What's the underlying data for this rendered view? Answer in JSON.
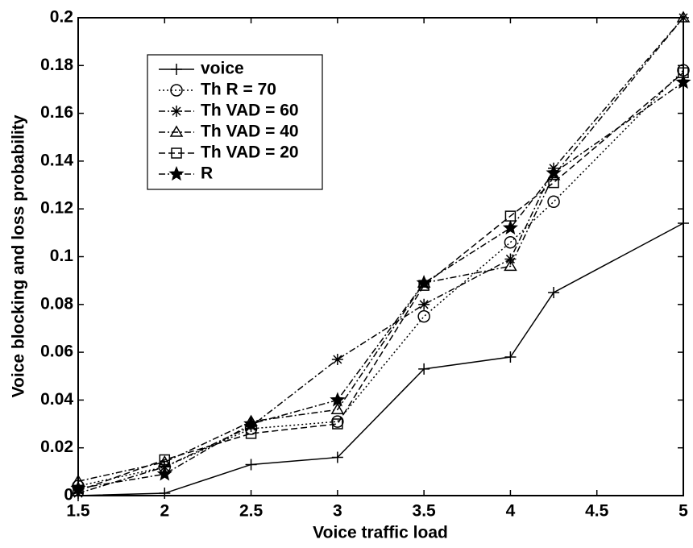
{
  "chart_data": {
    "type": "line",
    "xlabel": "Voice traffic load",
    "ylabel": "Voice blocking and loss probability",
    "xlim": [
      1.5,
      5
    ],
    "ylim": [
      0,
      0.2
    ],
    "xticks": [
      1.5,
      2,
      2.5,
      3,
      3.5,
      4,
      4.5,
      5
    ],
    "yticks": [
      0,
      0.02,
      0.04,
      0.06,
      0.08,
      0.1,
      0.12,
      0.14,
      0.16,
      0.18,
      0.2
    ],
    "legend": "upper left",
    "x": [
      1.5,
      2,
      2.5,
      3,
      3.5,
      4,
      4.25,
      5
    ],
    "series": [
      {
        "name": "voice",
        "color": "#000000",
        "marker": "plus",
        "dash": "solid",
        "values": [
          0,
          0.001,
          0.013,
          0.016,
          0.053,
          0.058,
          0.085,
          0.114
        ]
      },
      {
        "name": "Th R = 70",
        "color": "#000000",
        "marker": "circle",
        "dash": "dotted",
        "values": [
          0.004,
          0.012,
          0.028,
          0.031,
          0.075,
          0.106,
          0.123,
          0.178
        ]
      },
      {
        "name": "Th VAD = 60",
        "color": "#000000",
        "marker": "asterisk",
        "dash": "dashdot",
        "values": [
          0.001,
          0.012,
          0.029,
          0.057,
          0.08,
          0.099,
          0.137,
          0.2
        ]
      },
      {
        "name": "Th VAD = 40",
        "color": "#000000",
        "marker": "triangle",
        "dash": "dashdot",
        "values": [
          0.006,
          0.014,
          0.031,
          0.036,
          0.089,
          0.096,
          0.134,
          0.2
        ]
      },
      {
        "name": "Th VAD = 20",
        "color": "#000000",
        "marker": "square",
        "dash": "dashed",
        "values": [
          0.002,
          0.015,
          0.026,
          0.03,
          0.088,
          0.117,
          0.131,
          0.177
        ]
      },
      {
        "name": "R",
        "color": "#000000",
        "marker": "star",
        "dash": "dashdot",
        "values": [
          0.003,
          0.009,
          0.03,
          0.04,
          0.089,
          0.112,
          0.135,
          0.173
        ]
      }
    ]
  }
}
